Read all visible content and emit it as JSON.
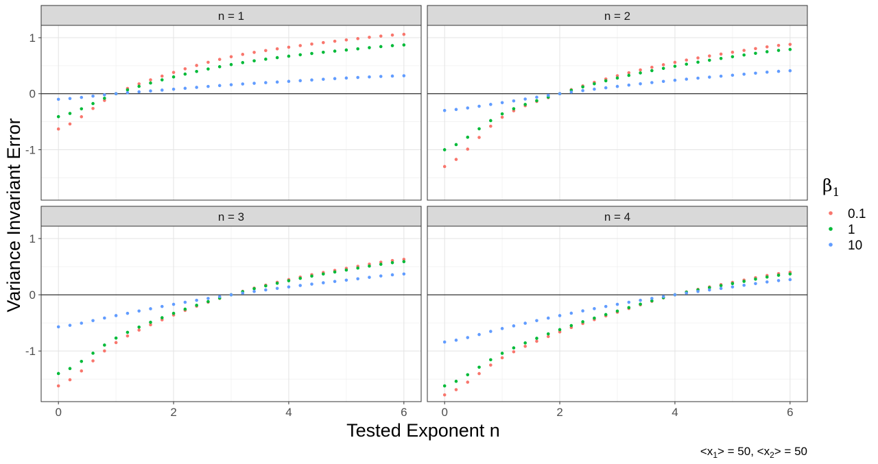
{
  "chart_data": {
    "type": "scatter",
    "facets": [
      {
        "label": "n = 1",
        "n": 1
      },
      {
        "label": "n = 2",
        "n": 2
      },
      {
        "label": "n = 3",
        "n": 3
      },
      {
        "label": "n = 4",
        "n": 4
      }
    ],
    "x": {
      "label": "Tested Exponent n",
      "range": [
        -0.3,
        6.3
      ],
      "ticks": [
        0,
        2,
        4,
        6
      ],
      "tick_labels": [
        "0",
        "2",
        "4",
        "6"
      ],
      "minor": [
        1,
        3,
        5
      ],
      "points": {
        "from": 0,
        "to": 6,
        "step": 0.2
      }
    },
    "y": {
      "label": "Variance Invariant Error",
      "range": [
        -1.9,
        1.22
      ],
      "ticks": [
        -1,
        0,
        1
      ],
      "tick_labels": [
        "-1",
        "0",
        "1"
      ],
      "minor": [
        -1.5,
        -0.5,
        0.5
      ]
    },
    "series": [
      {
        "name": "0.1",
        "color": "#F8766D",
        "points_at": {
          "n = 1": {
            "0": -0.63,
            "1": 0.0,
            "2": 0.38,
            "3": 0.66,
            "4": 0.83,
            "5": 0.96,
            "6": 1.06
          },
          "n = 2": {
            "0": -1.3,
            "1": -0.42,
            "2": 0.0,
            "3": 0.32,
            "4": 0.56,
            "5": 0.74,
            "6": 0.88
          },
          "n = 3": {
            "0": -1.62,
            "1": -0.85,
            "2": -0.36,
            "3": 0.0,
            "4": 0.27,
            "5": 0.47,
            "6": 0.63
          },
          "n = 4": {
            "0": -1.78,
            "1": -1.12,
            "2": -0.66,
            "3": -0.31,
            "4": 0.0,
            "5": 0.22,
            "6": 0.4
          }
        }
      },
      {
        "name": "1",
        "color": "#00BA38",
        "points_at": {
          "n = 1": {
            "0": -0.41,
            "1": 0.0,
            "2": 0.3,
            "3": 0.52,
            "4": 0.67,
            "5": 0.78,
            "6": 0.87
          },
          "n = 2": {
            "0": -1.0,
            "1": -0.36,
            "2": 0.0,
            "3": 0.28,
            "4": 0.49,
            "5": 0.66,
            "6": 0.79
          },
          "n = 3": {
            "0": -1.4,
            "1": -0.77,
            "2": -0.33,
            "3": 0.0,
            "4": 0.25,
            "5": 0.44,
            "6": 0.59
          },
          "n = 4": {
            "0": -1.62,
            "1": -1.04,
            "2": -0.62,
            "3": -0.29,
            "4": 0.0,
            "5": 0.2,
            "6": 0.37
          }
        }
      },
      {
        "name": "10",
        "color": "#619CFF",
        "points_at": {
          "n = 1": {
            "0": -0.1,
            "1": 0.0,
            "2": 0.08,
            "3": 0.16,
            "4": 0.22,
            "5": 0.28,
            "6": 0.32
          },
          "n = 2": {
            "0": -0.3,
            "1": -0.16,
            "2": 0.0,
            "3": 0.13,
            "4": 0.24,
            "5": 0.33,
            "6": 0.41
          },
          "n = 3": {
            "0": -0.57,
            "1": -0.37,
            "2": -0.17,
            "3": 0.0,
            "4": 0.14,
            "5": 0.26,
            "6": 0.37
          },
          "n = 4": {
            "0": -0.84,
            "1": -0.6,
            "2": -0.37,
            "3": -0.17,
            "4": 0.0,
            "5": 0.14,
            "6": 0.27
          }
        }
      }
    ],
    "legend": {
      "position": "right"
    },
    "grid": true,
    "zero_line": true
  },
  "legend": {
    "title_symbol": "β",
    "title_subscript": "1"
  },
  "caption": {
    "open_1": "<x",
    "sub_1": "1",
    "mid": "> = 50, <x",
    "sub_2": "2",
    "end": "> = 50"
  }
}
